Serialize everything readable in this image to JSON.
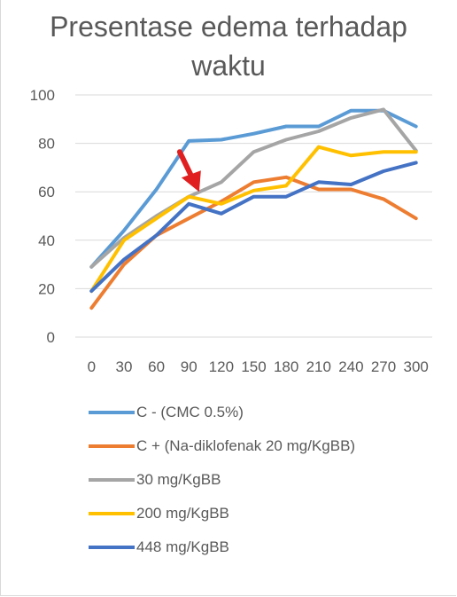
{
  "chart_data": {
    "type": "line",
    "title_lines": [
      "Presentase edema terhadap",
      "waktu"
    ],
    "x": [
      "0",
      "30",
      "60",
      "90",
      "120",
      "150",
      "180",
      "210",
      "240",
      "270",
      "300"
    ],
    "ylim": [
      0,
      100
    ],
    "yticks": [
      "0",
      "20",
      "40",
      "60",
      "80",
      "100"
    ],
    "grid": true,
    "legend_position": "bottom",
    "annotation": {
      "type": "arrow",
      "color": "#e02020",
      "points_to_x": "120"
    },
    "series": [
      {
        "name": "C - (CMC 0.5%)",
        "color": "#5b9bd5",
        "values": [
          29,
          44,
          61,
          81,
          81.5,
          84,
          87,
          87,
          93.5,
          93.5,
          87
        ]
      },
      {
        "name": "C + (Na-diklofenak 20 mg/KgBB)",
        "color": "#ed7d31",
        "values": [
          12,
          30,
          42,
          49,
          56,
          64,
          66,
          61,
          61,
          57,
          49
        ]
      },
      {
        "name": "30 mg/KgBB",
        "color": "#a5a5a5",
        "values": [
          29,
          41,
          50,
          58,
          64,
          76.5,
          81.5,
          85,
          90.5,
          94,
          77
        ]
      },
      {
        "name": "200 mg/KgBB",
        "color": "#ffc000",
        "values": [
          19,
          40,
          49,
          58,
          55,
          60.5,
          62.5,
          78.5,
          75,
          76.5,
          76.5
        ]
      },
      {
        "name": "448 mg/KgBB",
        "color": "#4472c4",
        "values": [
          19,
          32,
          42,
          55,
          51,
          58,
          58,
          64,
          63,
          68.5,
          72
        ]
      }
    ]
  }
}
